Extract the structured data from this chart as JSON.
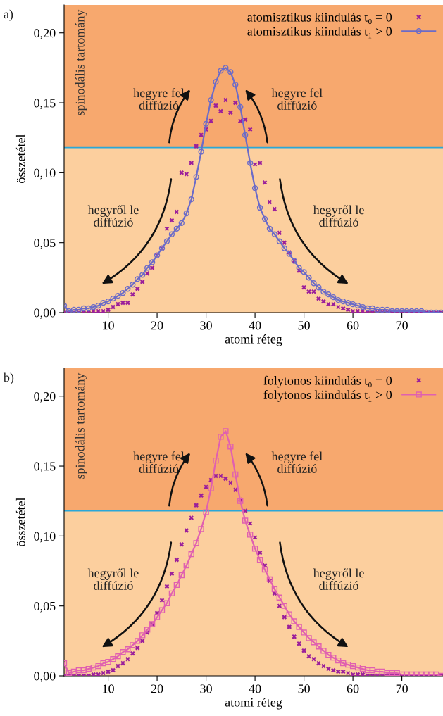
{
  "chart_data": [
    {
      "type": "line",
      "xlabel": "atomi réteg",
      "ylabel": "összetétel",
      "x": [
        1,
        2,
        3,
        4,
        5,
        6,
        7,
        8,
        9,
        10,
        11,
        12,
        13,
        14,
        15,
        16,
        17,
        18,
        19,
        20,
        21,
        22,
        23,
        24,
        25,
        26,
        27,
        28,
        29,
        30,
        31,
        32,
        33,
        34,
        35,
        36,
        37,
        38,
        39,
        40,
        41,
        42,
        43,
        44,
        45,
        46,
        47,
        48,
        49,
        50,
        51,
        52,
        53,
        54,
        55,
        56,
        57,
        58,
        59,
        60,
        61,
        62,
        63,
        64,
        65,
        66,
        67,
        68,
        69,
        70,
        71,
        72,
        73,
        74,
        75,
        76,
        77,
        78
      ],
      "series": [
        {
          "name": "atomisztikus kiindulás t₀ = 0",
          "type": "scatter",
          "marker": "cross",
          "color": "#9b1f9b",
          "values": [
            0.0,
            0.0,
            0.0,
            0.0,
            0.0,
            0.0,
            0.001,
            0.001,
            0.001,
            0.002,
            0.004,
            0.006,
            0.007,
            0.007,
            0.013,
            0.017,
            0.022,
            0.028,
            0.032,
            0.041,
            0.046,
            0.06,
            0.066,
            0.072,
            0.1,
            0.099,
            0.107,
            0.119,
            0.127,
            0.131,
            0.137,
            0.148,
            0.144,
            0.152,
            0.143,
            0.15,
            0.137,
            0.138,
            0.131,
            0.106,
            0.107,
            0.093,
            0.079,
            0.074,
            0.057,
            0.05,
            0.043,
            0.037,
            0.03,
            0.018,
            0.015,
            0.015,
            0.01,
            0.008,
            0.006,
            0.006,
            0.004,
            0.003,
            0.002,
            0.001,
            0.001,
            0.001,
            0.0,
            0.0,
            0.0,
            0.0,
            0.0,
            0.0,
            0.0,
            0.0,
            0.0,
            0.0,
            0.0,
            0.0,
            0.0,
            0.0,
            0.0,
            0.0
          ]
        },
        {
          "name": "atomisztikus kiindulás t₁ > 0",
          "marker": "circle",
          "line_style": "solid",
          "color": "#6b6bc8",
          "values": [
            0.005,
            0.001,
            0.002,
            0.002,
            0.003,
            0.003,
            0.004,
            0.005,
            0.007,
            0.008,
            0.01,
            0.012,
            0.014,
            0.017,
            0.02,
            0.024,
            0.027,
            0.032,
            0.036,
            0.041,
            0.046,
            0.051,
            0.056,
            0.06,
            0.064,
            0.071,
            0.081,
            0.097,
            0.115,
            0.135,
            0.152,
            0.165,
            0.173,
            0.175,
            0.172,
            0.163,
            0.147,
            0.127,
            0.107,
            0.089,
            0.075,
            0.067,
            0.06,
            0.056,
            0.051,
            0.046,
            0.042,
            0.037,
            0.032,
            0.029,
            0.025,
            0.021,
            0.018,
            0.015,
            0.013,
            0.011,
            0.009,
            0.008,
            0.007,
            0.006,
            0.005,
            0.004,
            0.003,
            0.003,
            0.002,
            0.002,
            0.002,
            0.001,
            0.001,
            0.001,
            0.001,
            0.001,
            0.001,
            0.001,
            0.0,
            0.0,
            0.0,
            0.0
          ]
        }
      ],
      "xlim": [
        1,
        78.4
      ],
      "ylim": [
        0,
        0.22
      ],
      "xticks": [
        10,
        20,
        30,
        40,
        50,
        60,
        70
      ],
      "yticks": [
        {
          "value": 0,
          "label": "0,00"
        },
        {
          "value": 0.05,
          "label": "0,05"
        },
        {
          "value": 0.1,
          "label": "0,10"
        },
        {
          "value": 0.15,
          "label": "0,15"
        },
        {
          "value": 0.2,
          "label": "0,20"
        }
      ],
      "bands": [
        {
          "axis": "y",
          "from": 0.118,
          "to": 0.22,
          "label": "spinodális tartomány",
          "color": "#f7a86e"
        },
        {
          "axis": "y",
          "from": 0,
          "to": 0.118,
          "color": "#fccf9e"
        }
      ],
      "ref_lines": [
        {
          "axis": "y",
          "value": 0.118,
          "color": "#2aa7d8",
          "line_style": "solid"
        }
      ],
      "annotations": [
        "a)",
        "hegyre fel\ndiffúzió",
        "hegyre fel\ndiffúzió",
        "hegyről le\ndiffúzió",
        "hegyről le\ndiffúzió"
      ],
      "legend": "top right",
      "grid": false
    },
    {
      "type": "line",
      "xlabel": "atomi réteg",
      "ylabel": "összetétel",
      "x": [
        1,
        2,
        3,
        4,
        5,
        6,
        7,
        8,
        9,
        10,
        11,
        12,
        13,
        14,
        15,
        16,
        17,
        18,
        19,
        20,
        21,
        22,
        23,
        24,
        25,
        26,
        27,
        28,
        29,
        30,
        31,
        32,
        33,
        34,
        35,
        36,
        37,
        38,
        39,
        40,
        41,
        42,
        43,
        44,
        45,
        46,
        47,
        48,
        49,
        50,
        51,
        52,
        53,
        54,
        55,
        56,
        57,
        58,
        59,
        60,
        61,
        62,
        63,
        64,
        65,
        66,
        67,
        68,
        69,
        70,
        71,
        72,
        73,
        74,
        75,
        76,
        77,
        78
      ],
      "series": [
        {
          "name": "folytonos kiindulás t₀ = 0",
          "type": "scatter",
          "marker": "cross",
          "color": "#9b1f9b",
          "values": [
            0.0,
            0.0,
            0.0,
            0.0,
            0.0,
            0.0,
            0.001,
            0.001,
            0.002,
            0.003,
            0.004,
            0.007,
            0.009,
            0.012,
            0.016,
            0.02,
            0.025,
            0.031,
            0.037,
            0.045,
            0.054,
            0.064,
            0.073,
            0.083,
            0.094,
            0.104,
            0.113,
            0.122,
            0.129,
            0.135,
            0.14,
            0.143,
            0.143,
            0.141,
            0.138,
            0.133,
            0.126,
            0.118,
            0.109,
            0.099,
            0.088,
            0.079,
            0.068,
            0.059,
            0.05,
            0.042,
            0.035,
            0.028,
            0.023,
            0.018,
            0.014,
            0.012,
            0.009,
            0.007,
            0.005,
            0.004,
            0.003,
            0.003,
            0.002,
            0.001,
            0.001,
            0.001,
            0.0,
            0.0,
            0.0,
            0.0,
            0.0,
            0.0,
            0.0,
            0.0,
            0.0,
            0.0,
            0.0,
            0.0,
            0.0,
            0.0,
            0.0,
            0.0
          ]
        },
        {
          "name": "folytonos kiindulás t₁ > 0",
          "marker": "square",
          "line_style": "solid",
          "color": "#e060b0",
          "values": [
            0.009,
            0.002,
            0.003,
            0.004,
            0.004,
            0.005,
            0.006,
            0.007,
            0.009,
            0.01,
            0.012,
            0.014,
            0.017,
            0.019,
            0.022,
            0.025,
            0.029,
            0.033,
            0.037,
            0.042,
            0.047,
            0.052,
            0.059,
            0.065,
            0.072,
            0.079,
            0.087,
            0.095,
            0.105,
            0.117,
            0.134,
            0.154,
            0.171,
            0.175,
            0.164,
            0.144,
            0.125,
            0.111,
            0.101,
            0.091,
            0.083,
            0.076,
            0.069,
            0.062,
            0.056,
            0.05,
            0.044,
            0.039,
            0.035,
            0.031,
            0.027,
            0.024,
            0.021,
            0.018,
            0.015,
            0.013,
            0.011,
            0.009,
            0.008,
            0.007,
            0.006,
            0.005,
            0.004,
            0.004,
            0.003,
            0.003,
            0.002,
            0.002,
            0.002,
            0.001,
            0.001,
            0.001,
            0.001,
            0.001,
            0.001,
            0.001,
            0.001,
            0.0
          ]
        }
      ],
      "xlim": [
        1,
        78.4
      ],
      "ylim": [
        0,
        0.22
      ],
      "xticks": [
        10,
        20,
        30,
        40,
        50,
        60,
        70
      ],
      "yticks": [
        {
          "value": 0,
          "label": "0,00"
        },
        {
          "value": 0.05,
          "label": "0,05"
        },
        {
          "value": 0.1,
          "label": "0,10"
        },
        {
          "value": 0.15,
          "label": "0,15"
        },
        {
          "value": 0.2,
          "label": "0,20"
        }
      ],
      "bands": [
        {
          "axis": "y",
          "from": 0.118,
          "to": 0.22,
          "label": "spinodális tartomány",
          "color": "#f7a86e"
        },
        {
          "axis": "y",
          "from": 0,
          "to": 0.118,
          "color": "#fccf9e"
        }
      ],
      "ref_lines": [
        {
          "axis": "y",
          "value": 0.118,
          "color": "#2aa7d8",
          "line_style": "solid"
        }
      ],
      "annotations": [
        "b)",
        "hegyre fel\ndiffúzió",
        "hegyre fel\ndiffúzió",
        "hegyről le\ndiffúzió",
        "hegyről le\ndiffúzió"
      ],
      "legend": "top right",
      "grid": false
    }
  ]
}
